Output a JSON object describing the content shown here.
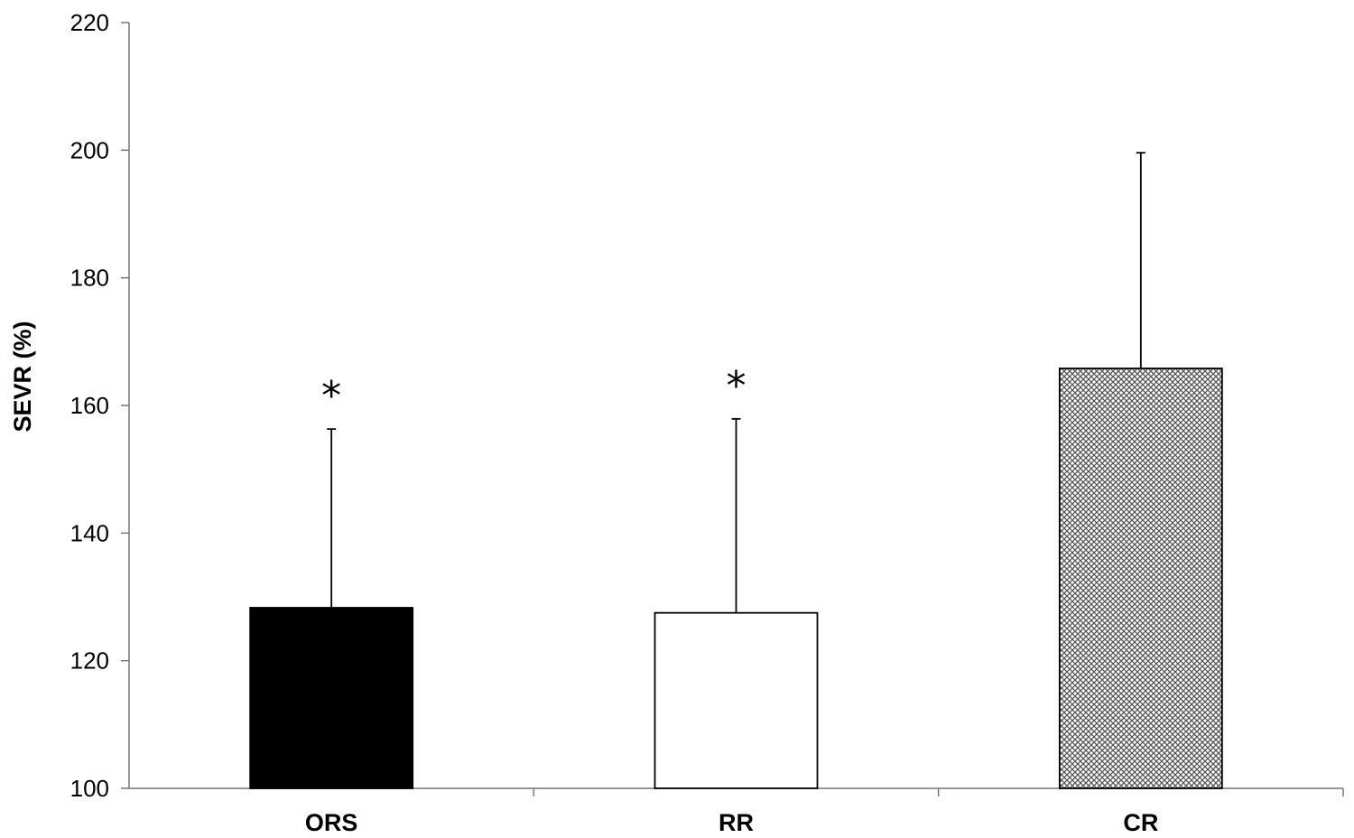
{
  "chart_data": {
    "type": "bar",
    "title": "",
    "xlabel": "",
    "ylabel": "SEVR (%)",
    "ylim": [
      100,
      220
    ],
    "yticks": [
      100,
      120,
      140,
      160,
      180,
      200,
      220
    ],
    "categories": [
      "ORS",
      "RR",
      "CR"
    ],
    "values": [
      128.3,
      127.5,
      165.8
    ],
    "error_upper": [
      156.3,
      157.9,
      199.6
    ],
    "fills": [
      "solid-black",
      "white",
      "crosshatch-gray"
    ],
    "annotations": [
      "*",
      "*",
      ""
    ],
    "grid": false,
    "legend": "none"
  }
}
